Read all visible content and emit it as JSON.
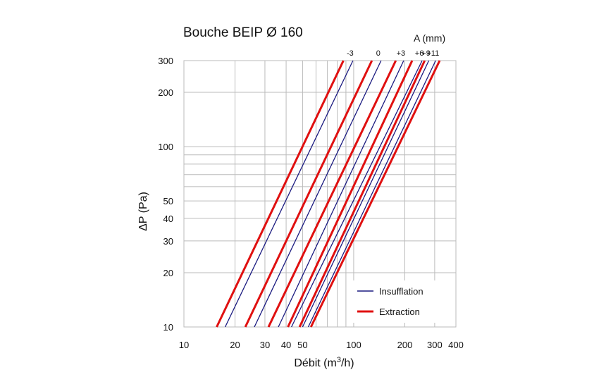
{
  "chart_data": {
    "type": "line",
    "title": "Bouche BEIP Ø 160",
    "xlabel_main": "Débit (m",
    "xlabel_sup": "3",
    "xlabel_tail": "/h)",
    "ylabel": "ΔP (Pa)",
    "x_scale": "log",
    "y_scale": "log",
    "xlim": [
      10,
      400
    ],
    "ylim": [
      10,
      300
    ],
    "grid": true,
    "xticks": [
      10,
      20,
      30,
      40,
      50,
      100,
      200,
      300,
      400
    ],
    "yticks": [
      10,
      20,
      30,
      40,
      50,
      100,
      200,
      300
    ],
    "setting_axis_label": "A (mm)",
    "settings": [
      "-3",
      "0",
      "+3",
      "+6",
      "+9",
      "+11"
    ],
    "legend": {
      "position": "bottom-right",
      "insufflation": "Insufflation",
      "extraction": "Extraction"
    },
    "colors": {
      "insufflation": "#1a1a80",
      "extraction": "#e01010",
      "grid": "#bbbbbb"
    },
    "series": [
      {
        "name": "Insufflation",
        "setting": "-3",
        "x": [
          17.5,
          99
        ],
        "y": [
          10,
          300
        ]
      },
      {
        "name": "Insufflation",
        "setting": "0",
        "x": [
          26,
          145
        ],
        "y": [
          10,
          300
        ]
      },
      {
        "name": "Insufflation",
        "setting": "+3",
        "x": [
          36,
          197
        ],
        "y": [
          10,
          300
        ]
      },
      {
        "name": "Insufflation",
        "setting": "+6",
        "x": [
          43,
          253
        ],
        "y": [
          10,
          300
        ]
      },
      {
        "name": "Insufflation",
        "setting": "+9",
        "x": [
          50,
          277
        ],
        "y": [
          10,
          300
        ]
      },
      {
        "name": "Insufflation",
        "setting": "+11",
        "x": [
          54,
          304
        ],
        "y": [
          10,
          300
        ]
      },
      {
        "name": "Extraction",
        "setting": "-3",
        "x": [
          15.6,
          87
        ],
        "y": [
          10,
          300
        ]
      },
      {
        "name": "Extraction",
        "setting": "0",
        "x": [
          23,
          128
        ],
        "y": [
          10,
          300
        ]
      },
      {
        "name": "Extraction",
        "setting": "+3",
        "x": [
          31.5,
          177
        ],
        "y": [
          10,
          300
        ]
      },
      {
        "name": "Extraction",
        "setting": "+6",
        "x": [
          41,
          221
        ],
        "y": [
          10,
          300
        ]
      },
      {
        "name": "Extraction",
        "setting": "+9",
        "x": [
          48,
          262
        ],
        "y": [
          10,
          300
        ]
      },
      {
        "name": "Extraction",
        "setting": "+11",
        "x": [
          56,
          321
        ],
        "y": [
          10,
          300
        ]
      }
    ]
  }
}
